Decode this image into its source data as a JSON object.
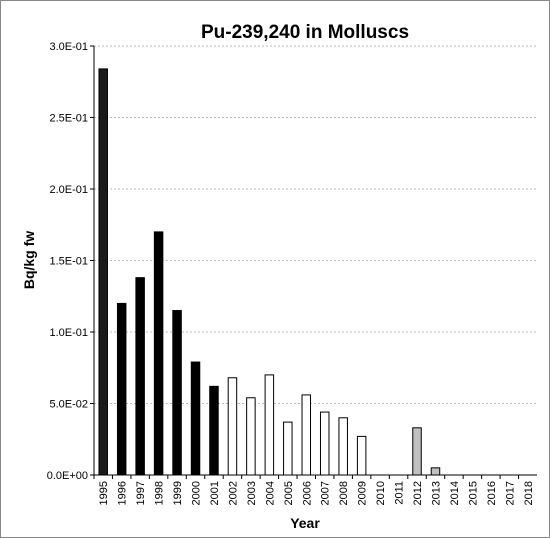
{
  "chart_data": {
    "type": "bar",
    "title": "Pu-239,240 in Molluscs",
    "x_label": "Year",
    "y_label": "Bq/kg fw",
    "categories": [
      "1995",
      "1996",
      "1997",
      "1998",
      "1999",
      "2000",
      "2001",
      "2002",
      "2003",
      "2004",
      "2005",
      "2006",
      "2007",
      "2008",
      "2009",
      "2010",
      "2011",
      "2012",
      "2013",
      "2014",
      "2015",
      "2016",
      "2017",
      "2018"
    ],
    "values": [
      0.284,
      0.12,
      0.138,
      0.17,
      0.115,
      0.079,
      0.062,
      0.068,
      0.054,
      0.07,
      0.037,
      0.056,
      0.044,
      0.04,
      0.027,
      null,
      null,
      0.033,
      0.005,
      null,
      null,
      null,
      null,
      null
    ],
    "colors": [
      "#1a1a1a",
      "#000000",
      "#000000",
      "#000000",
      "#000000",
      "#000000",
      "#000000",
      "#ffffff",
      "#ffffff",
      "#ffffff",
      "#ffffff",
      "#ffffff",
      "#ffffff",
      "#ffffff",
      "#ffffff",
      null,
      null,
      "#c0c0c0",
      "#c0c0c0",
      null,
      null,
      null,
      null,
      null
    ],
    "ylim": [
      0,
      0.3
    ],
    "yticks": [
      {
        "value": 0,
        "label": "0.0E+00"
      },
      {
        "value": 0.05,
        "label": "5.0E-02"
      },
      {
        "value": 0.1,
        "label": "1.0E-01"
      },
      {
        "value": 0.15,
        "label": "1.5E-01"
      },
      {
        "value": 0.2,
        "label": "2.0E-01"
      },
      {
        "value": 0.25,
        "label": "2.5E-01"
      },
      {
        "value": 0.3,
        "label": "3.0E-01"
      }
    ],
    "grid": true
  }
}
